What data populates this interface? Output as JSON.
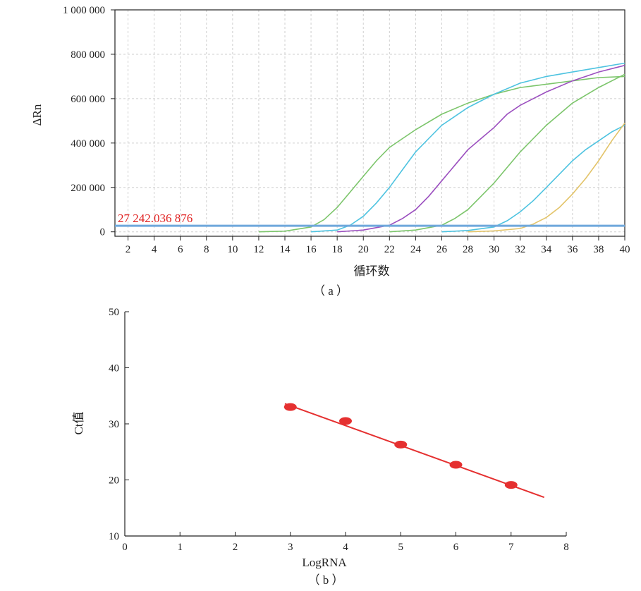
{
  "chart_data": [
    {
      "type": "line",
      "caption": "（ a ）",
      "xlabel": "循环数",
      "ylabel": "ΔRn",
      "xlim": [
        1,
        40
      ],
      "ylim": [
        -20000,
        1000000
      ],
      "xticks": [
        "2",
        "4",
        "6",
        "8",
        "10",
        "12",
        "14",
        "16",
        "18",
        "20",
        "22",
        "24",
        "26",
        "28",
        "30",
        "32",
        "34",
        "36",
        "38",
        "40"
      ],
      "yticks": [
        {
          "value": 0,
          "label": "0"
        },
        {
          "value": 200000,
          "label": "200 000"
        },
        {
          "value": 400000,
          "label": "400 000"
        },
        {
          "value": 600000,
          "label": "600 000"
        },
        {
          "value": 800000,
          "label": "800 000"
        },
        {
          "value": 1000000,
          "label": "1 000 000"
        }
      ],
      "grid": true,
      "threshold": {
        "value": 27242,
        "label": "27 242.036 876",
        "color": "#6fa8dc"
      },
      "series": [
        {
          "color": "#7cc56b",
          "x": [
            12,
            14,
            16,
            17,
            18,
            19,
            20,
            21,
            22,
            23,
            24,
            26,
            28,
            30,
            32,
            34,
            36,
            38,
            40
          ],
          "y": [
            0,
            3000,
            22000,
            55000,
            110000,
            180000,
            250000,
            320000,
            380000,
            420000,
            460000,
            530000,
            580000,
            620000,
            650000,
            665000,
            680000,
            695000,
            700000
          ]
        },
        {
          "color": "#4ec3e0",
          "x": [
            16,
            18,
            19,
            20,
            21,
            22,
            23,
            24,
            25,
            26,
            27,
            28,
            30,
            32,
            34,
            36,
            38,
            40
          ],
          "y": [
            0,
            8000,
            30000,
            70000,
            130000,
            200000,
            280000,
            360000,
            420000,
            480000,
            520000,
            560000,
            620000,
            670000,
            700000,
            720000,
            740000,
            760000
          ]
        },
        {
          "color": "#9b4fbf",
          "x": [
            18,
            20,
            22,
            23,
            24,
            25,
            26,
            27,
            28,
            29,
            30,
            31,
            32,
            34,
            36,
            38,
            40
          ],
          "y": [
            0,
            8000,
            30000,
            60000,
            100000,
            160000,
            230000,
            300000,
            370000,
            420000,
            470000,
            530000,
            570000,
            630000,
            680000,
            720000,
            750000
          ]
        },
        {
          "color": "#7cc56b",
          "x": [
            22,
            24,
            26,
            27,
            28,
            29,
            30,
            31,
            32,
            33,
            34,
            35,
            36,
            38,
            40
          ],
          "y": [
            0,
            8000,
            30000,
            60000,
            100000,
            160000,
            220000,
            290000,
            360000,
            420000,
            480000,
            530000,
            580000,
            650000,
            710000
          ]
        },
        {
          "color": "#4ec3e0",
          "x": [
            26,
            28,
            30,
            31,
            32,
            33,
            34,
            35,
            36,
            37,
            38,
            39,
            40
          ],
          "y": [
            0,
            6000,
            22000,
            50000,
            90000,
            140000,
            200000,
            260000,
            320000,
            370000,
            410000,
            450000,
            480000
          ]
        },
        {
          "color": "#e3c46a",
          "x": [
            28,
            30,
            32,
            33,
            34,
            35,
            36,
            37,
            38,
            39,
            40
          ],
          "y": [
            0,
            4000,
            15000,
            35000,
            65000,
            110000,
            170000,
            240000,
            320000,
            410000,
            490000
          ]
        }
      ]
    },
    {
      "type": "scatter",
      "caption": "（ b ）",
      "xlabel": "LogRNA",
      "ylabel": "Ct值",
      "xlim": [
        0,
        8
      ],
      "ylim": [
        10,
        50
      ],
      "xticks": [
        "0",
        "1",
        "2",
        "3",
        "4",
        "5",
        "6",
        "7",
        "8"
      ],
      "yticks": [
        "10",
        "20",
        "30",
        "40",
        "50"
      ],
      "color": "#e53030",
      "points": [
        {
          "x": 3,
          "y": 33.0
        },
        {
          "x": 4,
          "y": 30.5
        },
        {
          "x": 5,
          "y": 26.3
        },
        {
          "x": 6,
          "y": 22.7
        },
        {
          "x": 7,
          "y": 19.1
        }
      ],
      "fit_line": {
        "x": [
          2.9,
          7.6
        ],
        "y": [
          33.6,
          16.9
        ]
      }
    }
  ]
}
